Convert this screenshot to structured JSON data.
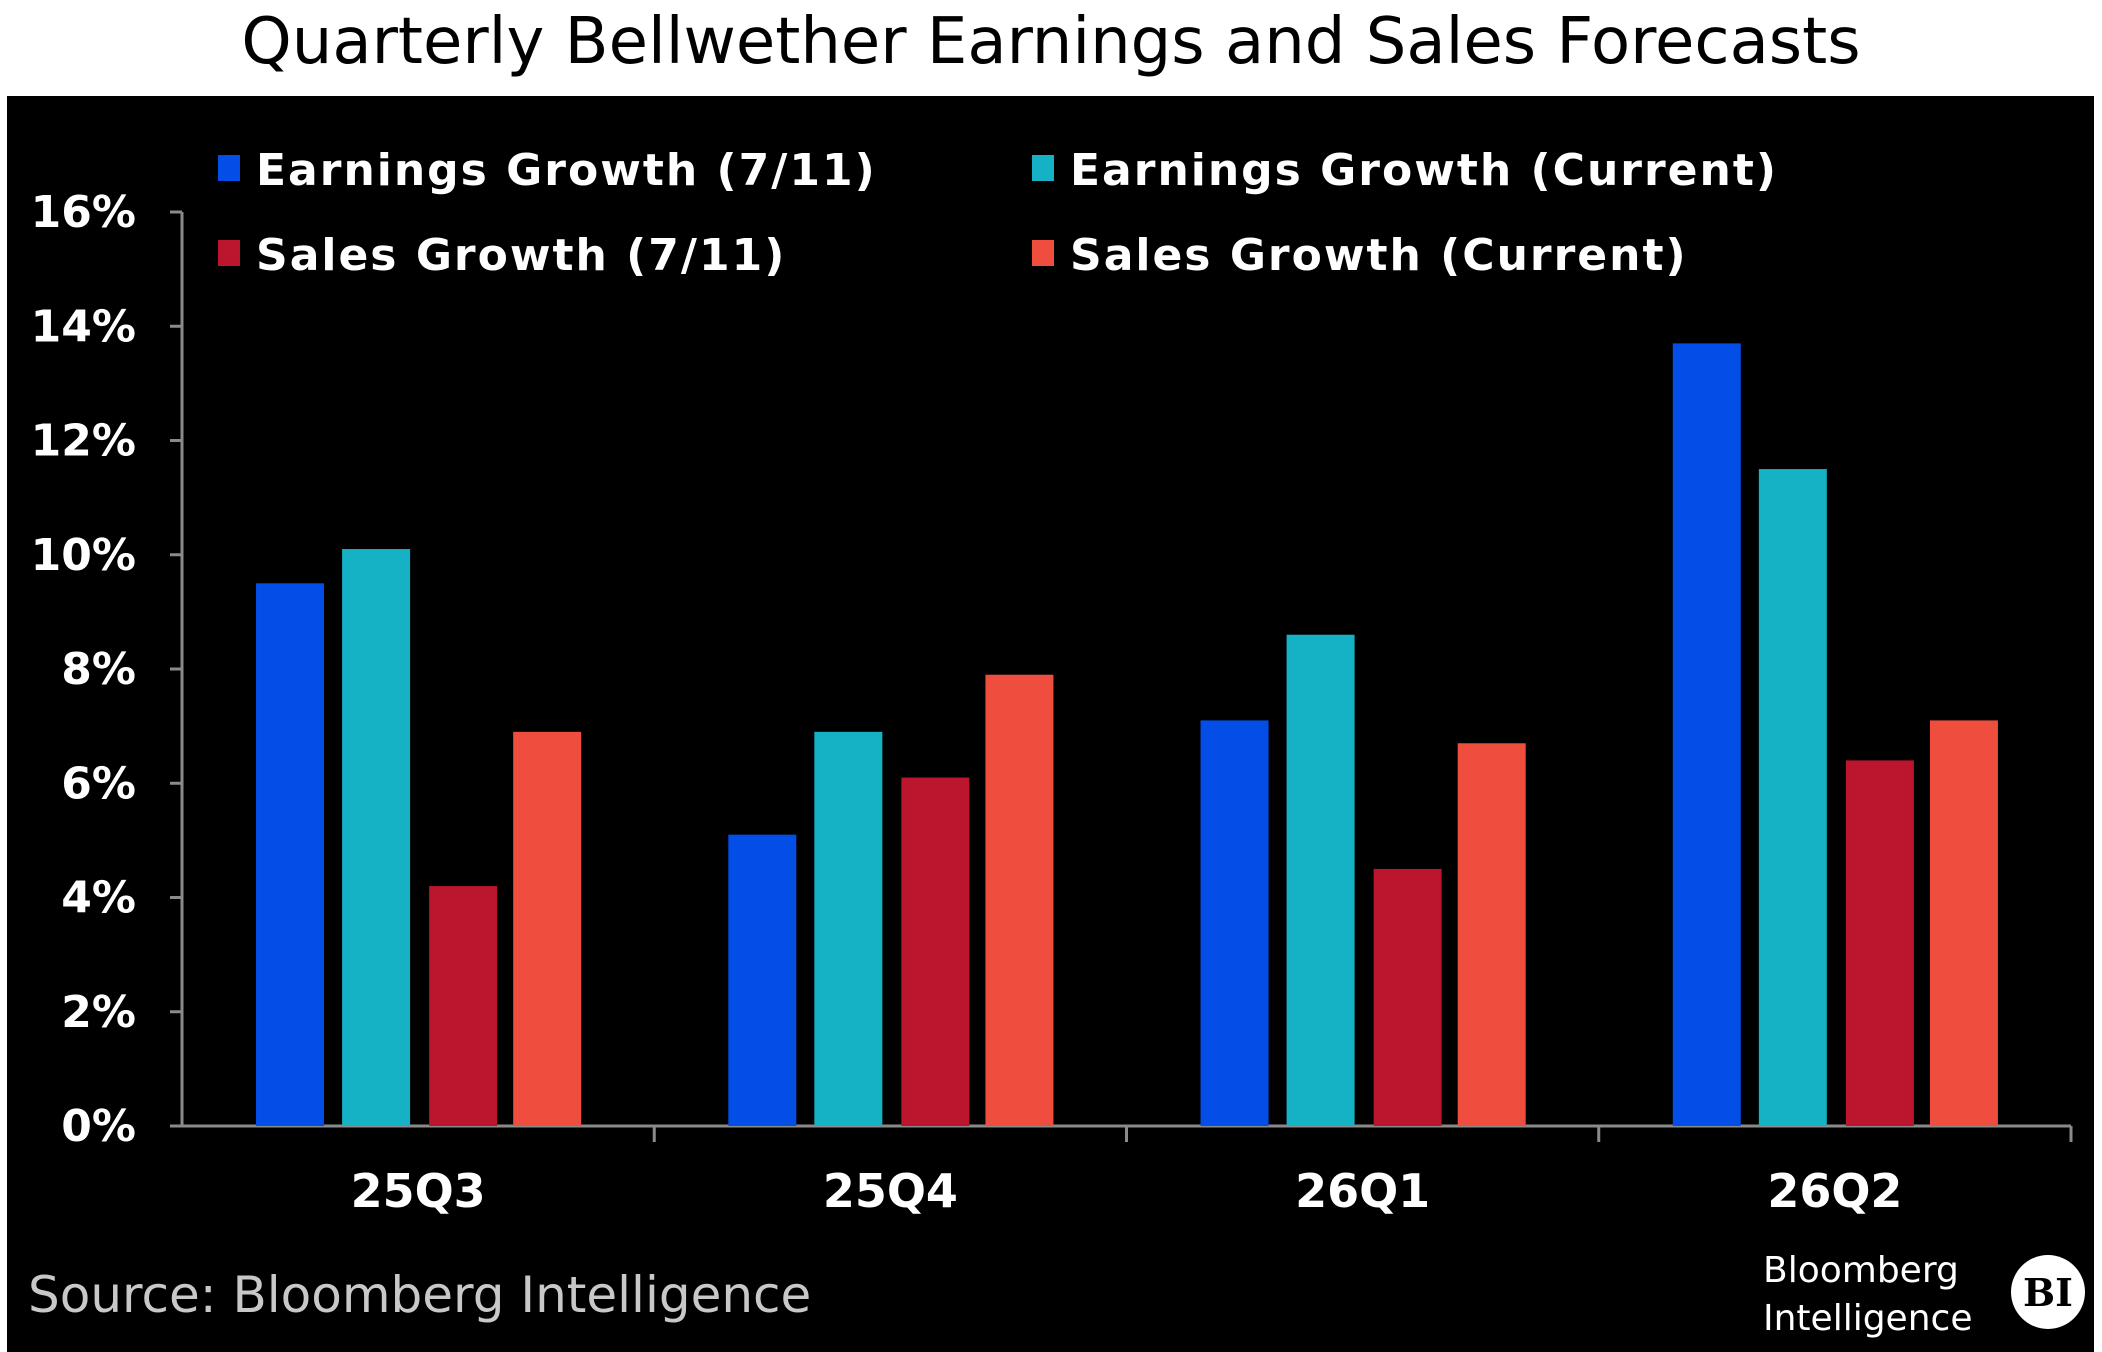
{
  "chart_data": {
    "type": "bar",
    "title": "Quarterly Bellwether Earnings and Sales Forecasts",
    "categories": [
      "25Q3",
      "25Q4",
      "26Q1",
      "26Q2"
    ],
    "series": [
      {
        "name": "Earnings Growth (7/11)",
        "color": "#044ee8",
        "values": [
          9.5,
          5.1,
          7.1,
          13.7
        ]
      },
      {
        "name": "Earnings Growth (Current)",
        "color": "#14b2c4",
        "values": [
          10.1,
          6.9,
          8.6,
          11.5
        ]
      },
      {
        "name": "Sales Growth (7/11)",
        "color": "#bb162e",
        "values": [
          4.2,
          6.1,
          4.5,
          6.4
        ]
      },
      {
        "name": "Sales Growth (Current)",
        "color": "#ef4e3e",
        "values": [
          6.9,
          7.9,
          6.7,
          7.1
        ]
      }
    ],
    "yticks": [
      "0%",
      "2%",
      "4%",
      "6%",
      "8%",
      "10%",
      "12%",
      "14%",
      "16%"
    ],
    "ylim": [
      0,
      16
    ],
    "yunit": "%",
    "grid": false,
    "legend": "top",
    "background": "#000000",
    "source": "Source: Bloomberg Intelligence",
    "logo": {
      "text": "Bloomberg Intelligence",
      "badge": "BI"
    }
  }
}
